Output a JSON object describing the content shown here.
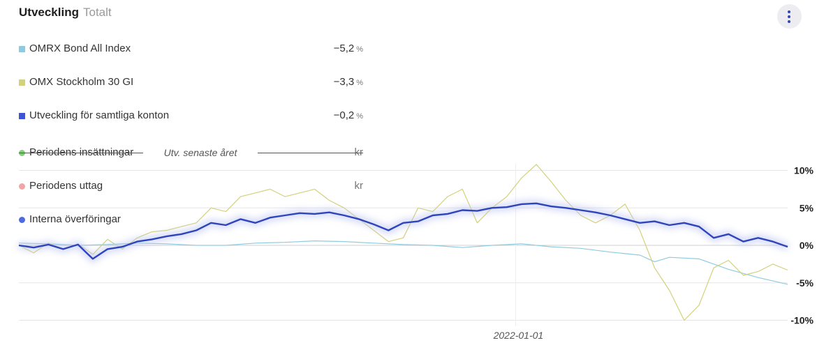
{
  "header": {
    "title": "Utveckling",
    "subtitle": "Totalt"
  },
  "menu": {
    "icon": "more-vertical-icon"
  },
  "legend": [
    {
      "label": "OMRX Bond All Index",
      "value": "−5,2",
      "unit": "%",
      "color": "#8fcbe0",
      "shape": "square"
    },
    {
      "label": "OMX Stockholm 30 GI",
      "value": "−3,3",
      "unit": "%",
      "color": "#d3d17a",
      "shape": "square"
    },
    {
      "label": "Utveckling för samtliga konton",
      "value": "−0,2",
      "unit": "%",
      "color": "#3a56d6",
      "shape": "square"
    },
    {
      "label": "Periodens insättningar",
      "value": "",
      "unit": "kr",
      "color": "#86cc7d",
      "shape": "circle"
    },
    {
      "label": "Periodens uttag",
      "value": "",
      "unit": "kr",
      "color": "#f2a5a5",
      "shape": "circle"
    },
    {
      "label": "Interna överföringar",
      "value": "",
      "unit": "",
      "color": "#4f6ae0",
      "shape": "circle"
    }
  ],
  "divider_label": "Utv. senaste året",
  "chart_data": {
    "type": "line",
    "x_range": [
      0,
      52
    ],
    "ylim": [
      -11,
      11
    ],
    "yticks": [
      {
        "value": 10,
        "label": "10%"
      },
      {
        "value": 5,
        "label": "5%"
      },
      {
        "value": 0,
        "label": "0%"
      },
      {
        "value": -5,
        "label": "-5%"
      },
      {
        "value": -10,
        "label": "-10%"
      }
    ],
    "xticks": [
      {
        "x": 33.6,
        "label": "2022-01-01"
      }
    ],
    "grid": true,
    "series": [
      {
        "name": "OMRX Bond All Index",
        "color": "#8fcbe0",
        "width": 1.2,
        "x": [
          0,
          2,
          4,
          6,
          8,
          10,
          12,
          14,
          16,
          18,
          20,
          22,
          24,
          26,
          28,
          30,
          32,
          34,
          36,
          38,
          40,
          42,
          43,
          44,
          46,
          48,
          50,
          52
        ],
        "y": [
          0.3,
          0.2,
          0.0,
          0.1,
          0.3,
          0.2,
          0.0,
          0.0,
          0.3,
          0.4,
          0.6,
          0.5,
          0.3,
          0.1,
          0.0,
          -0.3,
          0.0,
          0.2,
          -0.2,
          -0.4,
          -0.9,
          -1.3,
          -2.2,
          -1.6,
          -1.8,
          -3.2,
          -4.3,
          -5.2
        ]
      },
      {
        "name": "OMX Stockholm 30 GI",
        "color": "#d3d17a",
        "width": 1.2,
        "x": [
          0,
          1,
          2,
          3,
          4,
          5,
          6,
          7,
          8,
          9,
          10,
          11,
          12,
          13,
          14,
          15,
          16,
          17,
          18,
          19,
          20,
          21,
          22,
          23,
          24,
          25,
          26,
          27,
          28,
          29,
          30,
          31,
          32,
          33,
          34,
          35,
          36,
          37,
          38,
          39,
          40,
          41,
          42,
          43,
          44,
          45,
          46,
          47,
          48,
          49,
          50,
          51,
          52
        ],
        "y": [
          0.0,
          -1.0,
          0.3,
          -0.5,
          0.2,
          -1.2,
          0.8,
          -0.5,
          1.0,
          1.8,
          2.0,
          2.5,
          3.0,
          5.0,
          4.5,
          6.5,
          7.0,
          7.5,
          6.5,
          7.0,
          7.5,
          6.0,
          5.0,
          3.5,
          2.0,
          0.5,
          1.0,
          5.0,
          4.5,
          6.5,
          7.5,
          3.0,
          5.0,
          6.5,
          9.0,
          10.8,
          8.5,
          6.0,
          4.0,
          3.0,
          4.0,
          5.5,
          2.0,
          -3.0,
          -6.0,
          -10.0,
          -8.0,
          -3.0,
          -2.0,
          -4.0,
          -3.5,
          -2.5,
          -3.3
        ]
      },
      {
        "name": "Utveckling för samtliga konton",
        "color": "#2e44bd",
        "width": 2.4,
        "x": [
          0,
          1,
          2,
          3,
          4,
          5,
          6,
          7,
          8,
          9,
          10,
          11,
          12,
          13,
          14,
          15,
          16,
          17,
          18,
          19,
          20,
          21,
          22,
          23,
          24,
          25,
          26,
          27,
          28,
          29,
          30,
          31,
          32,
          33,
          34,
          35,
          36,
          37,
          38,
          39,
          40,
          41,
          42,
          43,
          44,
          45,
          46,
          47,
          48,
          49,
          50,
          51,
          52
        ],
        "y": [
          0.0,
          -0.3,
          0.1,
          -0.5,
          0.1,
          -1.8,
          -0.5,
          -0.2,
          0.5,
          0.8,
          1.2,
          1.5,
          2.0,
          3.0,
          2.7,
          3.5,
          3.0,
          3.7,
          4.0,
          4.3,
          4.2,
          4.4,
          4.0,
          3.5,
          2.8,
          2.0,
          3.0,
          3.2,
          4.0,
          4.2,
          4.7,
          4.6,
          5.0,
          5.1,
          5.5,
          5.6,
          5.2,
          5.0,
          4.7,
          4.4,
          4.0,
          3.5,
          3.0,
          3.2,
          2.7,
          3.0,
          2.5,
          1.0,
          1.5,
          0.5,
          1.0,
          0.5,
          -0.2
        ]
      }
    ]
  }
}
